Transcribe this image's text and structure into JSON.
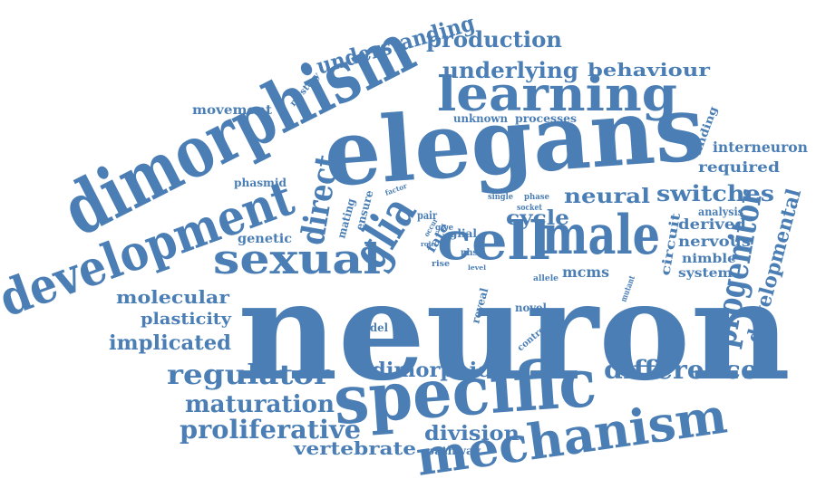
{
  "cloud": {
    "color": "#4a7eb5",
    "background": "#ffffff",
    "words": [
      {
        "text": "neuron"
      },
      {
        "text": "elegans"
      },
      {
        "text": "dimorphism"
      },
      {
        "text": "specific"
      },
      {
        "text": "development"
      },
      {
        "text": "mechanism"
      },
      {
        "text": "learning"
      },
      {
        "text": "cell"
      },
      {
        "text": "male"
      },
      {
        "text": "sexual"
      },
      {
        "text": "glia"
      },
      {
        "text": "direct"
      },
      {
        "text": "progenitor"
      },
      {
        "text": "understanding"
      },
      {
        "text": "production"
      },
      {
        "text": "underlying"
      },
      {
        "text": "behaviour"
      },
      {
        "text": "regulator"
      },
      {
        "text": "difference"
      },
      {
        "text": "neural"
      },
      {
        "text": "switches"
      },
      {
        "text": "proliferative"
      },
      {
        "text": "maturation"
      },
      {
        "text": "vertebrate"
      },
      {
        "text": "division"
      },
      {
        "text": "developmental"
      },
      {
        "text": "dimorphic"
      },
      {
        "text": "cycle"
      },
      {
        "text": "molecular"
      },
      {
        "text": "implicated"
      },
      {
        "text": "plasticity"
      },
      {
        "text": "movement"
      },
      {
        "text": "interneuron"
      },
      {
        "text": "required"
      },
      {
        "text": "derived"
      },
      {
        "text": "nervous"
      },
      {
        "text": "nimble"
      },
      {
        "text": "system"
      },
      {
        "text": "circuit"
      },
      {
        "text": "mcms"
      },
      {
        "text": "genetic"
      },
      {
        "text": "phasmid"
      },
      {
        "text": "unknown"
      },
      {
        "text": "processes"
      },
      {
        "text": "finding"
      },
      {
        "text": "analysis"
      },
      {
        "text": "mystery"
      },
      {
        "text": "mating"
      },
      {
        "text": "ensure"
      },
      {
        "text": "fate"
      },
      {
        "text": "glial"
      },
      {
        "text": "phso"
      },
      {
        "text": "model"
      },
      {
        "text": "reveal"
      },
      {
        "text": "novel"
      },
      {
        "text": "control"
      },
      {
        "text": "mutant"
      },
      {
        "text": "allele"
      },
      {
        "text": "pathway"
      },
      {
        "text": "single"
      },
      {
        "text": "phase"
      },
      {
        "text": "socket"
      },
      {
        "text": "factor"
      },
      {
        "text": "pair"
      },
      {
        "text": "occur"
      },
      {
        "text": "give"
      },
      {
        "text": "rise"
      },
      {
        "text": "level"
      },
      {
        "text": "role"
      }
    ]
  }
}
